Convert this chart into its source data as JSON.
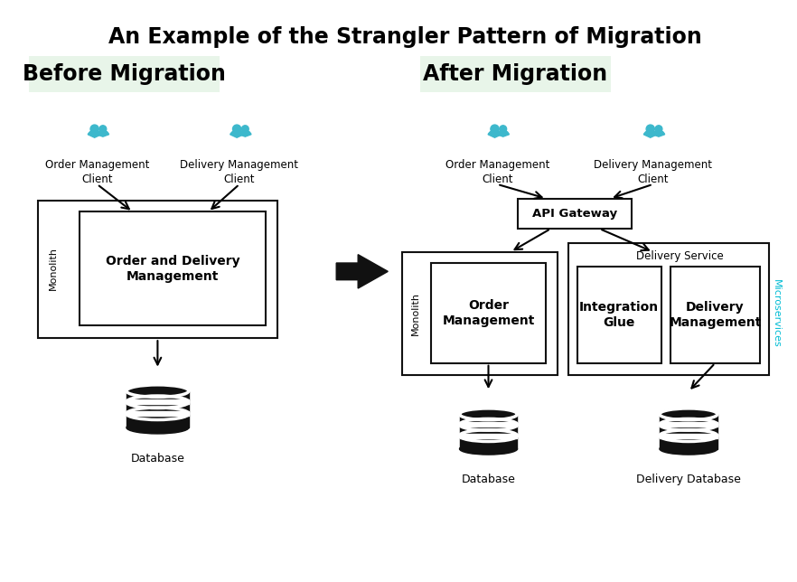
{
  "title": "An Example of the Strangler Pattern of Migration",
  "before_label": "Before Migration",
  "after_label": "After Migration",
  "header_bg": "#e8f5e9",
  "teal_color": "#3db8cc",
  "black": "#111111",
  "white": "#ffffff",
  "microservices_color": "#00bcd4",
  "bg_color": "#ffffff",
  "fig_w": 8.82,
  "fig_h": 6.44,
  "dpi": 100
}
